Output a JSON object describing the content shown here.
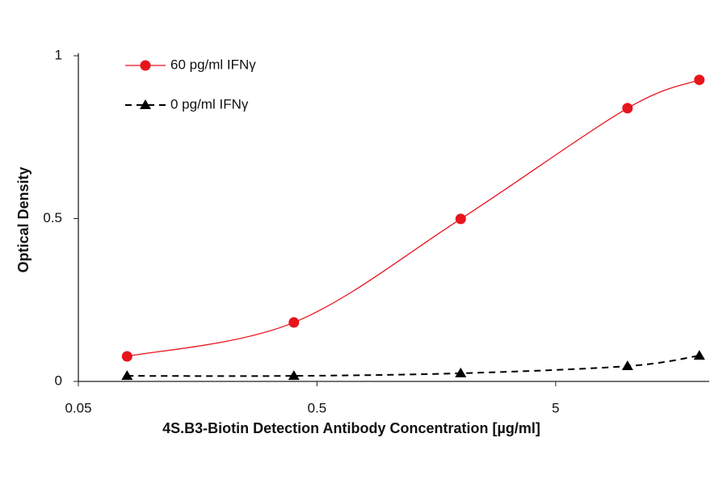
{
  "chart_data": {
    "type": "line",
    "x_label": "4S.B3-Biotin Detection Antibody Concentration [µg/ml]",
    "y_label": "Optical Density",
    "x": [
      0.08,
      0.4,
      2,
      10,
      20
    ],
    "x_log": true,
    "xlim": [
      0.05,
      22
    ],
    "xticks": [
      0.05,
      0.5,
      5
    ],
    "ylim": [
      0,
      1
    ],
    "yticks": [
      0,
      0.5,
      1
    ],
    "legend": "top-left",
    "series": [
      {
        "name": "60 pg/ml IFNγ",
        "color": "#e8141c",
        "marker": "circle",
        "line_style": "solid",
        "values": [
          0.077,
          0.181,
          0.499,
          0.839,
          0.926
        ]
      },
      {
        "name": "0 pg/ml IFNγ",
        "color": "#000000",
        "marker": "triangle",
        "line_style": "dashed",
        "values": [
          0.017,
          0.017,
          0.025,
          0.047,
          0.079
        ]
      }
    ]
  }
}
